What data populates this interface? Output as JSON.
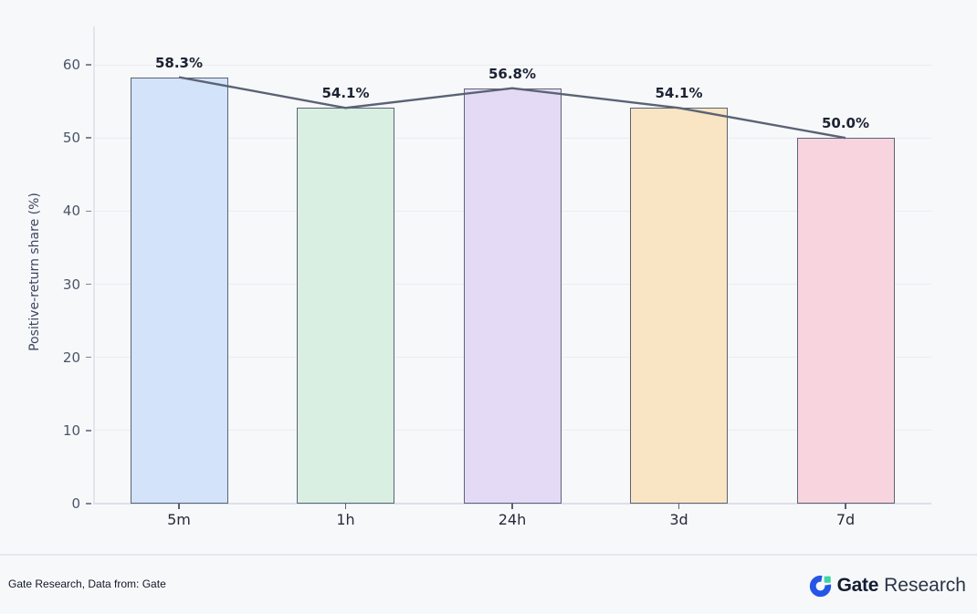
{
  "chart_data": {
    "type": "bar",
    "title": "",
    "categories": [
      "5m",
      "1h",
      "24h",
      "3d",
      "7d"
    ],
    "values": [
      58.3,
      54.1,
      56.8,
      54.1,
      50.0
    ],
    "value_labels": [
      "58.3%",
      "54.1%",
      "56.8%",
      "54.1%",
      "50.0%"
    ],
    "xlabel": "",
    "ylabel": "Positive-return share (%)",
    "ylim": [
      0,
      65
    ],
    "yticks": [
      0,
      10,
      20,
      30,
      40,
      50,
      60
    ],
    "grid": true,
    "legend_position": "none",
    "overlay_line_on_bar_tops": true,
    "bar_fill_colors": [
      "#d3e3f9",
      "#d9efe1",
      "#e5daf6",
      "#f9e4c3",
      "#f8d4de"
    ],
    "bar_border_color": "#5a6477",
    "line_color": "#5a6375",
    "background_color": "#f7f8fa"
  },
  "footer": {
    "source_text": "Gate Research, Data from: Gate",
    "brand": {
      "name_bold": "Gate",
      "name_regular": "Research",
      "logo_blue": "#2556e6",
      "logo_green": "#3bd6a3"
    }
  }
}
